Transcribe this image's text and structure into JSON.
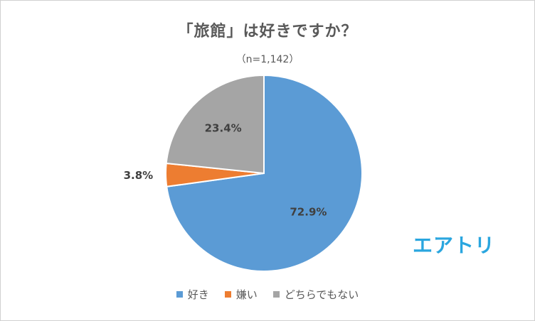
{
  "chart_data": {
    "type": "pie",
    "title": "「旅館」は好きですか？",
    "subtitle": "（n=1,142）",
    "categories": [
      "好き",
      "嫌い",
      "どちらでもない"
    ],
    "values": [
      72.9,
      3.8,
      23.4
    ],
    "value_labels": [
      "72.9%",
      "3.8%",
      "23.4%"
    ],
    "colors": [
      "#5b9bd5",
      "#ed7d31",
      "#a5a5a5"
    ],
    "legend_position": "bottom"
  },
  "logo": {
    "text": "エアトリ"
  }
}
